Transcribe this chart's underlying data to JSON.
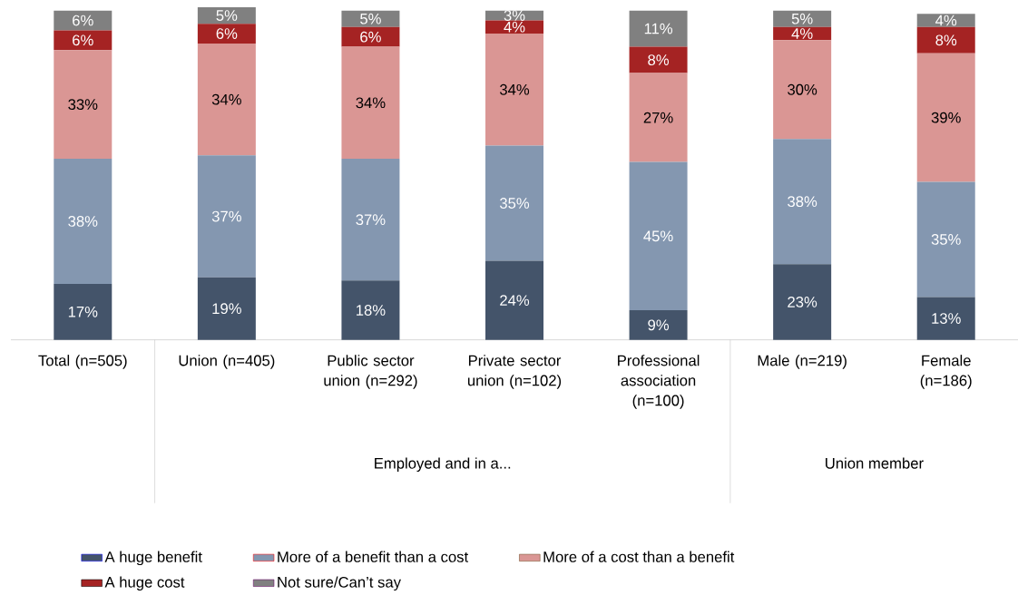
{
  "chart_data": {
    "type": "bar",
    "stacked": true,
    "legend": "bottom",
    "categories": [
      "Total (n=505)",
      "Union (n=405)",
      "Public sector union (n=292)",
      "Private sector union (n=102)",
      "Professional association (n=100)",
      "Male (n=219)",
      "Female (n=186)"
    ],
    "annotations": [
      "Employed and in a...",
      "Union member"
    ],
    "series": [
      {
        "name": "A huge benefit",
        "color": "#44546a",
        "values": [
          17,
          19,
          18,
          24,
          9,
          23,
          13
        ],
        "value_labels": [
          "17%",
          "19%",
          "18%",
          "24%",
          "9%",
          "23%",
          "13%"
        ]
      },
      {
        "name": "More of a benefit than a cost",
        "color": "#8497b0",
        "values": [
          38,
          37,
          37,
          35,
          45,
          38,
          35
        ],
        "value_labels": [
          "38%",
          "37%",
          "37%",
          "35%",
          "45%",
          "38%",
          "35%"
        ]
      },
      {
        "name": "More of a cost than a benefit",
        "color": "#da9694",
        "values": [
          33,
          34,
          34,
          34,
          27,
          30,
          39
        ],
        "value_labels": [
          "33%",
          "34%",
          "34%",
          "34%",
          "27%",
          "30%",
          "39%"
        ]
      },
      {
        "name": "A huge cost",
        "color": "#a52323",
        "values": [
          6,
          6,
          6,
          4,
          8,
          4,
          8
        ],
        "value_labels": [
          "6%",
          "6%",
          "6%",
          "4%",
          "8%",
          "4%",
          "8%"
        ]
      },
      {
        "name": "Not sure/Can’t say",
        "color": "#808080",
        "values": [
          6,
          5,
          5,
          3,
          11,
          5,
          4
        ],
        "value_labels": [
          "6%",
          "5%",
          "5%",
          "3%",
          "11%",
          "5%",
          "4%"
        ]
      }
    ]
  }
}
